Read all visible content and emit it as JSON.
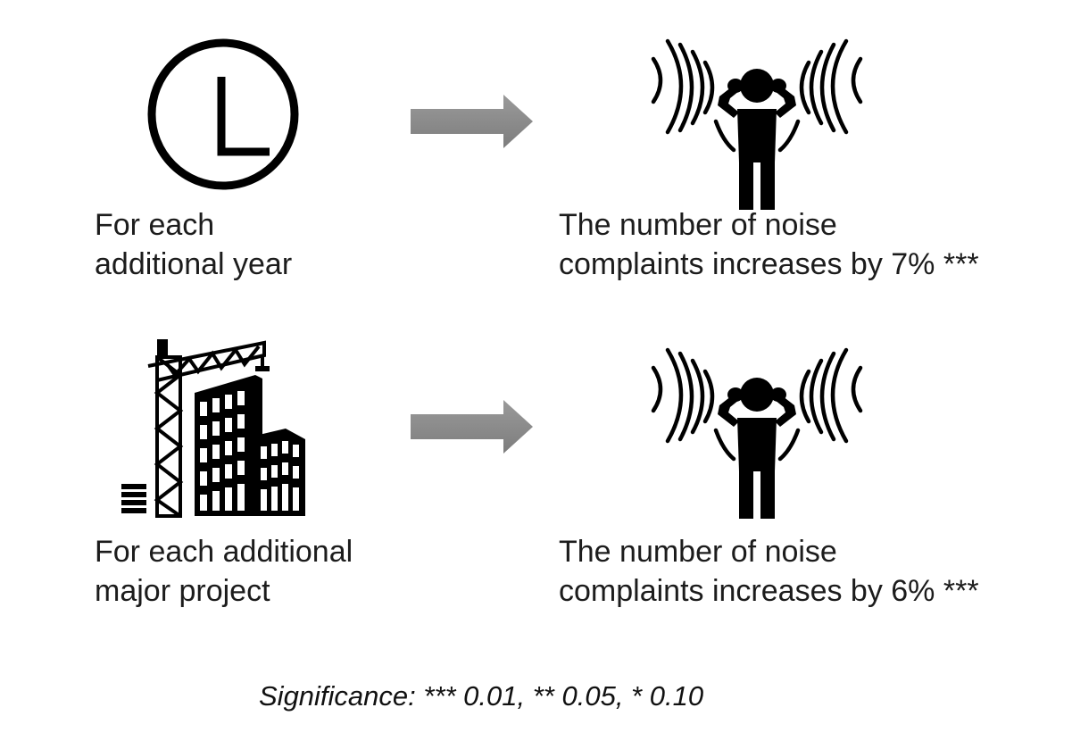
{
  "rows": [
    {
      "cause": {
        "icon": "clock-icon",
        "lines": [
          "For each",
          "additional year"
        ]
      },
      "effect": {
        "icon": "noise-person-icon",
        "lines": [
          "The number of noise",
          "complaints increases by 7% ***"
        ]
      }
    },
    {
      "cause": {
        "icon": "construction-building-icon",
        "lines": [
          "For each additional",
          "major project"
        ]
      },
      "effect": {
        "icon": "noise-person-icon",
        "lines": [
          "The number of noise",
          "complaints increases by 6% ***"
        ]
      }
    }
  ],
  "arrow": {
    "icon": "right-arrow-icon",
    "color": "#888888"
  },
  "significance_note": "Significance: *** 0.01, ** 0.05, * 0.10"
}
